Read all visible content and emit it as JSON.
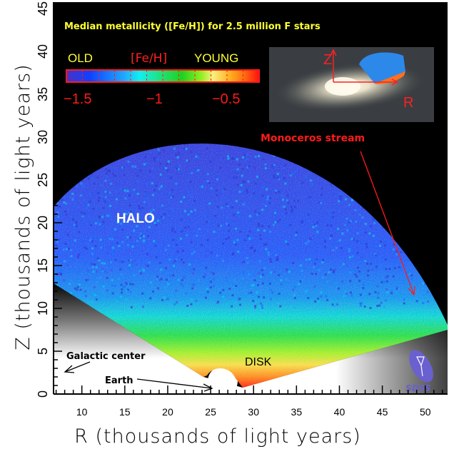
{
  "chart_data": {
    "type": "heatmap",
    "title": "Median metallicity ([Fe/H]) for 2.5 million F stars",
    "xlabel": "R (thousands of light years)",
    "ylabel": "Z (thousands of light years)",
    "xlim": [
      6.7,
      52.6
    ],
    "ylim": [
      0,
      45
    ],
    "xticks": [
      "10",
      "15",
      "20",
      "25",
      "30",
      "35",
      "40",
      "45",
      "50"
    ],
    "yticks": [
      "0",
      "5",
      "10",
      "15",
      "20",
      "25",
      "30",
      "35",
      "40",
      "45"
    ],
    "grid": false,
    "colorbar": {
      "label": "[Fe/H]",
      "left_label": "OLD",
      "right_label": "YOUNG",
      "ticks": [
        "−1.5",
        "−1",
        "−0.5"
      ],
      "range": [
        -1.6,
        -0.4
      ],
      "colors": [
        "#5030c0",
        "#1040ff",
        "#1078f0",
        "#20a8ff",
        "#10f0f0",
        "#20e070",
        "#20d020",
        "#90f020",
        "#f8f080",
        "#ffb020",
        "#ff7010",
        "#ff1010"
      ]
    },
    "annotations": {
      "halo": "HALO",
      "disk": "DISK",
      "stream": "Monoceros stream",
      "galactic_center": "Galactic center",
      "earth": "Earth"
    },
    "inset": {
      "z_label": "Z",
      "r_label": "R"
    },
    "colors": {
      "stream": "#ff1a1a",
      "title": "#ffff33",
      "halo_text": "#ffffff"
    }
  },
  "logo": "SDSS"
}
